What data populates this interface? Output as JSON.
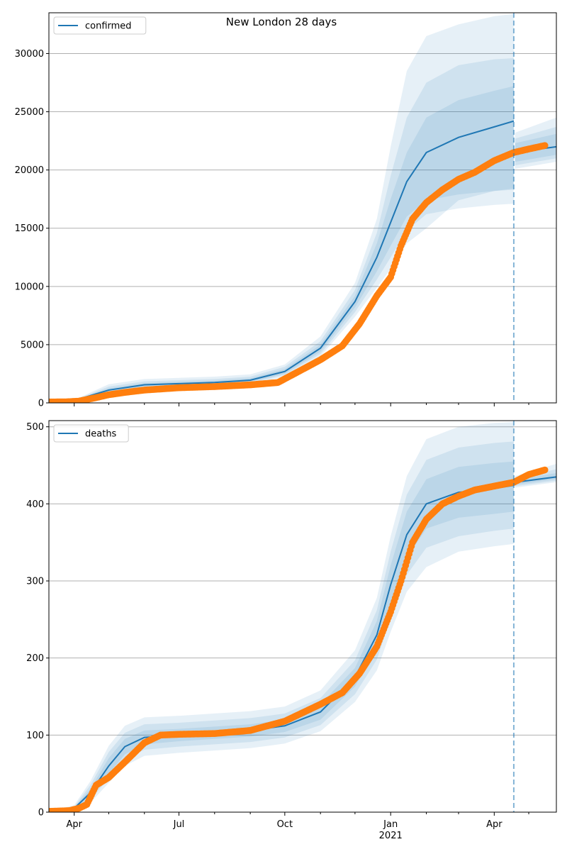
{
  "figure": {
    "title": "New London 28 days"
  },
  "colors": {
    "line": "#1f77b4",
    "band": "#1f77b4",
    "obs": "#ff7f0e",
    "grid": "#b0b0b0",
    "axis": "#000000",
    "vline": "#1f77b4"
  },
  "chart_data": [
    {
      "type": "line",
      "legend": "confirmed",
      "legend_position": "top-left",
      "grid": "horizontal",
      "ylim": [
        0,
        33500
      ],
      "yticks": [
        0,
        5000,
        10000,
        15000,
        20000,
        25000,
        30000
      ],
      "xaxis": {
        "start": "2020-03-10",
        "end": "2021-05-25",
        "major_ticks": [
          {
            "date": "2020-04-01",
            "label": "Apr"
          },
          {
            "date": "2020-07-01",
            "label": "Jul"
          },
          {
            "date": "2020-10-01",
            "label": "Oct"
          },
          {
            "date": "2021-01-01",
            "label": "Jan"
          },
          {
            "date": "2021-04-01",
            "label": "Apr"
          }
        ],
        "year_label": "2021",
        "tick_labels_shown": false
      },
      "forecast_date": "2021-04-18",
      "series": [
        {
          "name": "confirmed",
          "role": "median",
          "x": [
            "2020-03-10",
            "2020-04-01",
            "2020-05-01",
            "2020-06-01",
            "2020-07-01",
            "2020-08-01",
            "2020-09-01",
            "2020-10-01",
            "2020-11-01",
            "2020-12-01",
            "2020-12-20",
            "2021-01-01",
            "2021-01-15",
            "2021-02-01",
            "2021-03-01",
            "2021-04-01",
            "2021-04-18",
            "2021-04-19",
            "2021-05-25"
          ],
          "median": [
            80,
            200,
            1100,
            1550,
            1650,
            1750,
            1950,
            2700,
            4700,
            8700,
            12500,
            15500,
            19000,
            21500,
            22800,
            23700,
            24200,
            21500,
            22000
          ],
          "bands": [
            {
              "lo": [
                80,
                180,
                950,
                1400,
                1500,
                1600,
                1800,
                2500,
                4400,
                8200,
                11300,
                13500,
                16000,
                17400,
                17900,
                18200,
                18300,
                20700,
                21300
              ],
              "hi": [
                80,
                220,
                1250,
                1700,
                1800,
                1900,
                2100,
                2900,
                5000,
                9200,
                13700,
                17500,
                21500,
                24500,
                26000,
                26800,
                27200,
                22300,
                23100
              ]
            },
            {
              "lo": [
                80,
                160,
                850,
                1300,
                1400,
                1500,
                1700,
                2400,
                4200,
                7800,
                10600,
                12500,
                14800,
                16200,
                16700,
                17000,
                17100,
                20400,
                21000
              ],
              "hi": [
                80,
                240,
                1400,
                1850,
                1950,
                2050,
                2250,
                3100,
                5300,
                9700,
                14600,
                19500,
                24500,
                27500,
                29000,
                29500,
                29600,
                22700,
                23700
              ]
            },
            {
              "lo": [
                80,
                140,
                750,
                1200,
                1300,
                1400,
                1600,
                2250,
                4000,
                7400,
                9900,
                11500,
                13700,
                15000,
                17400,
                18200,
                18400,
                20100,
                20700
              ],
              "hi": [
                80,
                260,
                1600,
                2050,
                2150,
                2250,
                2450,
                3300,
                5700,
                10300,
                15800,
                22000,
                28500,
                31500,
                32500,
                33200,
                33400,
                23200,
                24500
              ]
            }
          ]
        },
        {
          "name": "",
          "role": "observed",
          "x": [
            "2020-03-10",
            "2020-03-25",
            "2020-04-05",
            "2020-04-20",
            "2020-05-01",
            "2020-05-15",
            "2020-06-01",
            "2020-07-01",
            "2020-08-01",
            "2020-09-01",
            "2020-09-25",
            "2020-10-15",
            "2020-11-01",
            "2020-11-20",
            "2020-12-05",
            "2020-12-20",
            "2021-01-01",
            "2021-01-10",
            "2021-01-20",
            "2021-02-01",
            "2021-02-15",
            "2021-03-01",
            "2021-03-15",
            "2021-04-01",
            "2021-04-18",
            "2021-05-01",
            "2021-05-15"
          ],
          "y": [
            80,
            90,
            150,
            450,
            700,
            900,
            1100,
            1300,
            1400,
            1550,
            1750,
            2800,
            3700,
            4900,
            6800,
            9200,
            10800,
            13500,
            15800,
            17200,
            18300,
            19200,
            19800,
            20800,
            21500,
            21800,
            22100
          ]
        }
      ]
    },
    {
      "type": "line",
      "legend": "deaths",
      "legend_position": "top-left",
      "grid": "horizontal",
      "ylim": [
        0,
        508
      ],
      "yticks": [
        0,
        100,
        200,
        300,
        400,
        500
      ],
      "xaxis": {
        "start": "2020-03-10",
        "end": "2021-05-25",
        "major_ticks": [
          {
            "date": "2020-04-01",
            "label": "Apr"
          },
          {
            "date": "2020-07-01",
            "label": "Jul"
          },
          {
            "date": "2020-10-01",
            "label": "Oct"
          },
          {
            "date": "2021-01-01",
            "label": "Jan"
          },
          {
            "date": "2021-04-01",
            "label": "Apr"
          }
        ],
        "year_label": "2021",
        "tick_labels_shown": true
      },
      "forecast_date": "2021-04-18",
      "series": [
        {
          "name": "deaths",
          "role": "median",
          "x": [
            "2020-03-10",
            "2020-04-01",
            "2020-04-15",
            "2020-05-01",
            "2020-05-15",
            "2020-06-01",
            "2020-07-01",
            "2020-08-01",
            "2020-09-01",
            "2020-10-01",
            "2020-11-01",
            "2020-12-01",
            "2020-12-20",
            "2021-01-01",
            "2021-01-15",
            "2021-02-01",
            "2021-03-01",
            "2021-04-01",
            "2021-04-18",
            "2021-04-19",
            "2021-05-25"
          ],
          "median": [
            1,
            5,
            25,
            60,
            85,
            97,
            100,
            103,
            106,
            112,
            130,
            175,
            230,
            295,
            360,
            400,
            415,
            420,
            424,
            428,
            435
          ],
          "bands": [
            {
              "lo": [
                1,
                4,
                20,
                50,
                75,
                88,
                92,
                95,
                98,
                104,
                120,
                163,
                212,
                270,
                330,
                368,
                382,
                387,
                390,
                425,
                432
              ],
              "hi": [
                1,
                6,
                30,
                70,
                95,
                106,
                108,
                111,
                114,
                120,
                140,
                187,
                248,
                320,
                390,
                432,
                448,
                453,
                455,
                431,
                440
              ]
            },
            {
              "lo": [
                1,
                3,
                16,
                44,
                68,
                81,
                85,
                88,
                91,
                97,
                113,
                153,
                198,
                252,
                308,
                343,
                358,
                365,
                368,
                423,
                430
              ],
              "hi": [
                1,
                7,
                35,
                78,
                103,
                114,
                116,
                119,
                122,
                128,
                148,
                197,
                262,
                338,
                412,
                457,
                473,
                479,
                481,
                433,
                445
              ]
            },
            {
              "lo": [
                1,
                2,
                12,
                38,
                60,
                73,
                77,
                80,
                83,
                89,
                105,
                143,
                184,
                234,
                286,
                318,
                338,
                345,
                348,
                421,
                428
              ],
              "hi": [
                1,
                9,
                40,
                86,
                112,
                123,
                125,
                128,
                131,
                137,
                158,
                210,
                278,
                358,
                436,
                484,
                500,
                505,
                506,
                436,
                452
              ]
            }
          ]
        },
        {
          "name": "",
          "role": "observed",
          "x": [
            "2020-03-10",
            "2020-03-28",
            "2020-04-05",
            "2020-04-12",
            "2020-04-20",
            "2020-05-01",
            "2020-05-15",
            "2020-06-01",
            "2020-06-15",
            "2020-07-01",
            "2020-08-01",
            "2020-09-01",
            "2020-10-01",
            "2020-11-01",
            "2020-11-20",
            "2020-12-05",
            "2020-12-20",
            "2021-01-01",
            "2021-01-10",
            "2021-01-20",
            "2021-02-01",
            "2021-02-15",
            "2021-03-01",
            "2021-03-15",
            "2021-04-01",
            "2021-04-18",
            "2021-05-01",
            "2021-05-15"
          ],
          "y": [
            1,
            2,
            5,
            10,
            35,
            45,
            65,
            90,
            100,
            101,
            102,
            106,
            118,
            140,
            155,
            180,
            215,
            260,
            300,
            350,
            380,
            400,
            410,
            418,
            423,
            428,
            438,
            444
          ]
        }
      ]
    }
  ]
}
